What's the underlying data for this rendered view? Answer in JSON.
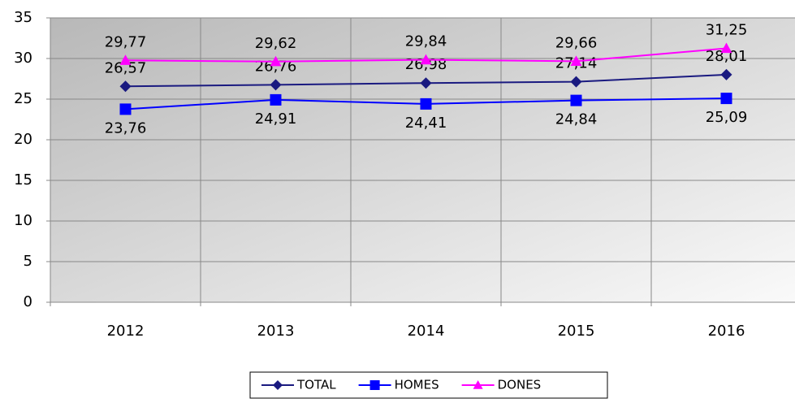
{
  "chart_data": {
    "type": "line",
    "categories": [
      "2012",
      "2013",
      "2014",
      "2015",
      "2016"
    ],
    "series": [
      {
        "name": "TOTAL",
        "color": "#1a1a80",
        "marker": "diamond",
        "label_position": "above",
        "values": [
          26.57,
          26.76,
          26.98,
          27.14,
          28.01
        ],
        "value_labels": [
          "26,57",
          "26,76",
          "26,98",
          "27,14",
          "28,01"
        ]
      },
      {
        "name": "HOMES",
        "color": "#0000ff",
        "marker": "square",
        "label_position": "below",
        "values": [
          23.76,
          24.91,
          24.41,
          24.84,
          25.09
        ],
        "value_labels": [
          "23,76",
          "24,91",
          "24,41",
          "24,84",
          "25,09"
        ]
      },
      {
        "name": "DONES",
        "color": "#ff00ff",
        "marker": "triangle",
        "label_position": "above",
        "values": [
          29.77,
          29.62,
          29.84,
          29.66,
          31.25
        ],
        "value_labels": [
          "29,77",
          "29,62",
          "29,84",
          "29,66",
          "31,25"
        ]
      }
    ],
    "ylim": [
      0,
      35
    ],
    "yticks": [
      0,
      5,
      10,
      15,
      20,
      25,
      30,
      35
    ],
    "grid": true,
    "legend": "bottom"
  }
}
